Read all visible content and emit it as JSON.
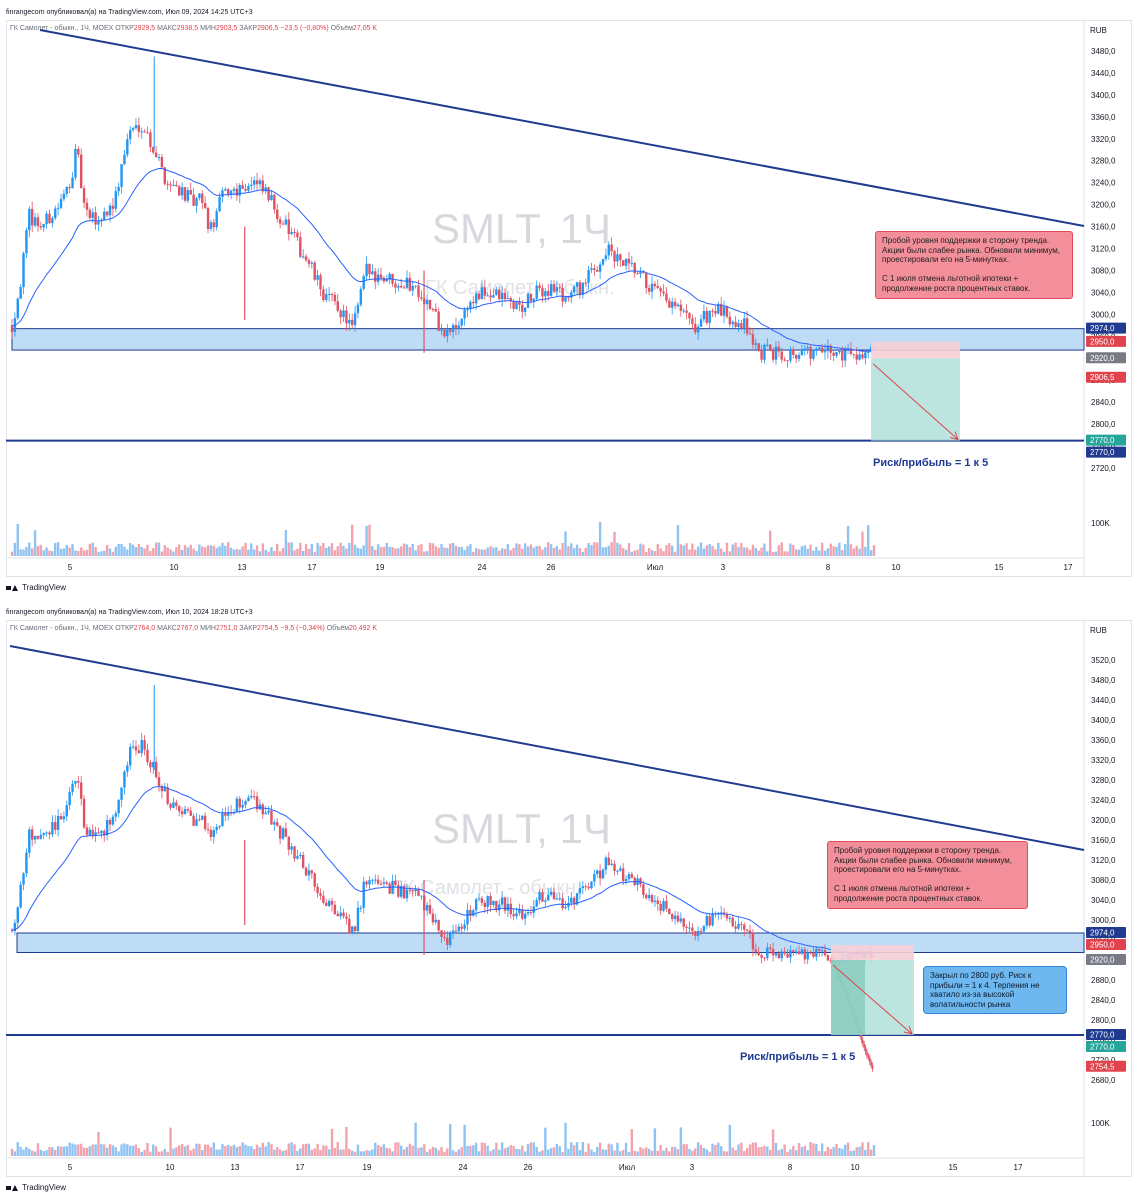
{
  "charts": [
    {
      "publisher_line": "finrangecom опубликовал(а) на TradingView.com, Июл 09, 2024 14:25 UTC+3",
      "legend": {
        "instrument": "ГК Самолет - обыкн., 1Ч, MOEX",
        "open_label": "ОТКР",
        "open": "2929,5",
        "high_label": "МАКС",
        "high": "2938,5",
        "low_label": "МИН",
        "low": "2903,5",
        "close_label": "ЗАКР",
        "close": "2906,5",
        "change": "−23,5 (−0,80%)",
        "volume_label": "Объём",
        "volume": "27,05 K"
      },
      "watermark": "SMLT, 1Ч",
      "watermark_sub": "ГК Самолет - обыкн.",
      "currency": "RUB",
      "note": "Пробой уровня поддержки в сторону тренда. Акции были слабее рынка. Обновили минимум, проестировали его на 5-минутках.\n\nС 1 июля отмена льготной ипотеки + продолжение роста процентных ставок.",
      "risk_reward": "Риск/прибыль = 1 к 5",
      "tradingview": "TradingView"
    },
    {
      "publisher_line": "finrangecom опубликовал(а) на TradingView.com, Июл 10, 2024 18:28 UTC+3",
      "legend": {
        "instrument": "ГК Самолет - обыкн., 1Ч, MOEX",
        "open_label": "ОТКР",
        "open": "2764,0",
        "high_label": "МАКС",
        "high": "2767,0",
        "low_label": "МИН",
        "low": "2751,0",
        "close_label": "ЗАКР",
        "close": "2754,5",
        "change": "−9,5 (−0,34%)",
        "volume_label": "Объём",
        "volume": "20,492 K"
      },
      "watermark": "SMLT, 1Ч",
      "watermark_sub": "ГК Самолет - обыкн.",
      "currency": "RUB",
      "note": "Пробой уровня поддержки в сторону тренда. Акции были слабее рынка. Обновили минимум, проестировали его на 5-минутках.\n\nС 1 июля отмена льготной ипотеки + продолжение роста процентных ставок.",
      "note2": "Закрыл по 2800 руб. Риск к прибыли = 1 к 4. Терпения не хватило из-за высокой волатильности рынка",
      "risk_reward": "Риск/прибыль = 1 к 5",
      "tradingview": "TradingView"
    }
  ],
  "colors": {
    "up": "#26a69a",
    "down": "#ef5350",
    "upBody": "#2196f3",
    "downBody": "#e05262",
    "trend": "#1f3a8f",
    "ma": "#2962ff",
    "zone": "#bfdcf7",
    "profit": "#b2e0d9",
    "loss": "#f6cfd6"
  },
  "chart_data": [
    {
      "type": "candlestick",
      "title": "SMLT, 1Ч",
      "ylim": [
        2680,
        3500
      ],
      "y_ticks": [
        "3480,0",
        "3440,0",
        "3400,0",
        "3360,0",
        "3320,0",
        "3280,0",
        "3240,0",
        "3200,0",
        "3160,0",
        "3120,0",
        "3080,0",
        "3040,0",
        "3000,0",
        "2960,0",
        "2920,0",
        "2880,0",
        "2840,0",
        "2800,0",
        "2760,0",
        "2720,0"
      ],
      "x_ticks": [
        "5",
        "10",
        "13",
        "17",
        "19",
        "24",
        "26",
        "Июл",
        "3",
        "8",
        "10",
        "15",
        "17"
      ],
      "price_labels": [
        {
          "value": 2974.0,
          "text": "2974,0",
          "color": "#1f3a8f"
        },
        {
          "value": 2950.0,
          "text": "2950,0",
          "color": "#e0434d"
        },
        {
          "value": 2920.0,
          "text": "2920,0",
          "color": "#787b86"
        },
        {
          "value": 2906.5,
          "text": "2906,5",
          "color": "#e0434d"
        },
        {
          "value": 2770.0,
          "text": "2770,0",
          "color": "#26a69a"
        },
        {
          "value": 2770.0,
          "text": "2770,0",
          "color": "#1f3a8f"
        }
      ],
      "support_zone": [
        2935,
        2974
      ],
      "target_line": 2770,
      "entry": 2920,
      "stop": 2950,
      "target": 2770,
      "volume_tick": "100K"
    },
    {
      "type": "candlestick",
      "title": "SMLT, 1Ч",
      "ylim": [
        2660,
        3560
      ],
      "y_ticks": [
        "3520,0",
        "3480,0",
        "3440,0",
        "3400,0",
        "3360,0",
        "3320,0",
        "3280,0",
        "3240,0",
        "3200,0",
        "3160,0",
        "3120,0",
        "3080,0",
        "3040,0",
        "3000,0",
        "2960,0",
        "2920,0",
        "2880,0",
        "2840,0",
        "2800,0",
        "2760,0",
        "2720,0",
        "2680,0"
      ],
      "x_ticks": [
        "5",
        "10",
        "13",
        "17",
        "19",
        "24",
        "26",
        "Июл",
        "3",
        "8",
        "10",
        "15",
        "17"
      ],
      "price_labels": [
        {
          "value": 2974.0,
          "text": "2974,0",
          "color": "#1f3a8f"
        },
        {
          "value": 2950.0,
          "text": "2950,0",
          "color": "#e0434d"
        },
        {
          "value": 2920.0,
          "text": "2920,0",
          "color": "#787b86"
        },
        {
          "value": 2770.0,
          "text": "2770,0",
          "color": "#1f3a8f"
        },
        {
          "value": 2770.0,
          "text": "2770,0",
          "color": "#26a69a"
        },
        {
          "value": 2754.5,
          "text": "2754,5",
          "color": "#e0434d"
        }
      ],
      "support_zone": [
        2935,
        2974
      ],
      "target_line": 2770,
      "entry": 2920,
      "stop": 2950,
      "target": 2770,
      "volume_tick": "100K"
    }
  ]
}
